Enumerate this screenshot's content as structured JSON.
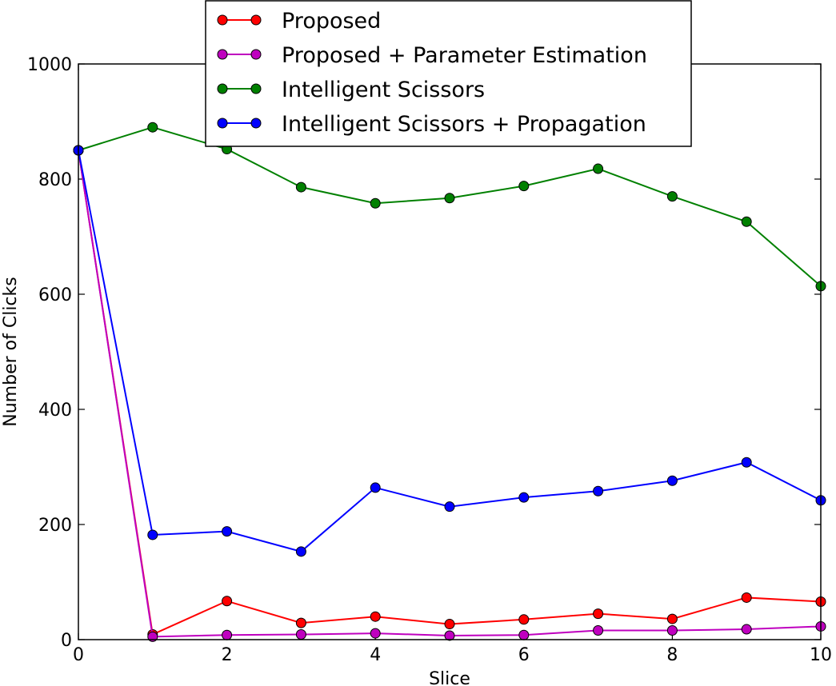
{
  "chart_data": {
    "type": "line",
    "xlabel": "Slice",
    "ylabel": "Number of Clicks",
    "xlim": [
      0,
      10
    ],
    "ylim": [
      0,
      1000
    ],
    "xticks": [
      "0",
      "2",
      "4",
      "6",
      "8",
      "10"
    ],
    "yticks": [
      "0",
      "200",
      "400",
      "600",
      "800",
      "1000"
    ],
    "legend_position": "top-center",
    "grid": false,
    "x": [
      0,
      1,
      2,
      3,
      4,
      5,
      6,
      7,
      8,
      9,
      10
    ],
    "series": [
      {
        "name": "Proposed",
        "color": "#ff0000",
        "values": [
          850,
          9,
          67,
          29,
          40,
          27,
          35,
          45,
          36,
          73,
          66
        ]
      },
      {
        "name": "Proposed + Parameter Estimation",
        "color": "#bf00bf",
        "values": [
          850,
          5,
          8,
          9,
          11,
          7,
          8,
          16,
          16,
          18,
          23
        ]
      },
      {
        "name": "Intelligent Scissors",
        "color": "#008000",
        "values": [
          850,
          890,
          852,
          786,
          758,
          767,
          788,
          818,
          770,
          726,
          614
        ]
      },
      {
        "name": "Intelligent Scissors + Propagation",
        "color": "#0000ff",
        "values": [
          850,
          182,
          188,
          153,
          264,
          231,
          247,
          258,
          276,
          308,
          242
        ]
      }
    ]
  }
}
